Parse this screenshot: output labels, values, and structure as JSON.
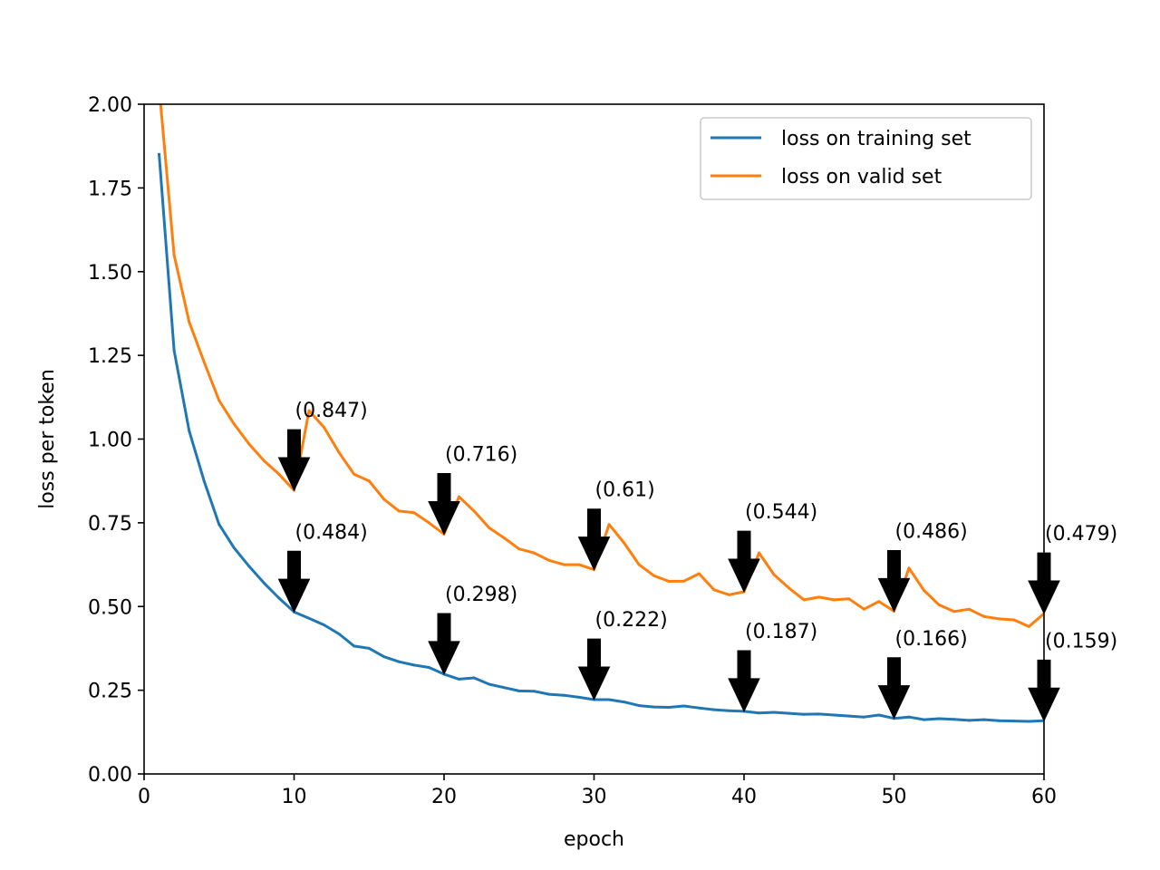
{
  "chart_data": {
    "type": "line",
    "title": "",
    "xlabel": "epoch",
    "ylabel": "loss per token",
    "xlim": [
      0,
      60
    ],
    "ylim": [
      0,
      2.0
    ],
    "xticks": [
      0,
      10,
      20,
      30,
      40,
      50,
      60
    ],
    "yticks": [
      0.0,
      0.25,
      0.5,
      0.75,
      1.0,
      1.25,
      1.5,
      1.75,
      2.0
    ],
    "xtick_labels": [
      "0",
      "10",
      "20",
      "30",
      "40",
      "50",
      "60"
    ],
    "ytick_labels": [
      "0.00",
      "0.25",
      "0.50",
      "0.75",
      "1.00",
      "1.25",
      "1.50",
      "1.75",
      "2.00"
    ],
    "grid": false,
    "legend_position": "top-right",
    "series": [
      {
        "name": "loss on training set",
        "color": "#1f77b4",
        "x": [
          1,
          2,
          3,
          4,
          5,
          6,
          7,
          8,
          9,
          10,
          11,
          12,
          13,
          14,
          15,
          16,
          17,
          18,
          19,
          20,
          21,
          22,
          23,
          24,
          25,
          26,
          27,
          28,
          29,
          30,
          31,
          32,
          33,
          34,
          35,
          36,
          37,
          38,
          39,
          40,
          41,
          42,
          43,
          44,
          45,
          46,
          47,
          48,
          49,
          50,
          51,
          52,
          53,
          54,
          55,
          56,
          57,
          58,
          59,
          60
        ],
        "values": [
          1.85,
          1.265,
          1.025,
          0.875,
          0.745,
          0.675,
          0.62,
          0.57,
          0.525,
          0.484,
          0.465,
          0.445,
          0.418,
          0.382,
          0.375,
          0.35,
          0.335,
          0.325,
          0.318,
          0.298,
          0.283,
          0.287,
          0.268,
          0.258,
          0.248,
          0.247,
          0.238,
          0.235,
          0.229,
          0.222,
          0.222,
          0.215,
          0.204,
          0.2,
          0.199,
          0.203,
          0.197,
          0.192,
          0.189,
          0.187,
          0.182,
          0.184,
          0.181,
          0.178,
          0.179,
          0.176,
          0.173,
          0.17,
          0.176,
          0.166,
          0.17,
          0.162,
          0.165,
          0.163,
          0.16,
          0.162,
          0.159,
          0.158,
          0.157,
          0.159
        ]
      },
      {
        "name": "loss on valid set",
        "color": "#ff7f0e",
        "x": [
          1,
          2,
          3,
          4,
          5,
          6,
          7,
          8,
          9,
          10,
          11,
          12,
          13,
          14,
          15,
          16,
          17,
          18,
          19,
          20,
          21,
          22,
          23,
          24,
          25,
          26,
          27,
          28,
          29,
          30,
          31,
          32,
          33,
          34,
          35,
          36,
          37,
          38,
          39,
          40,
          41,
          42,
          43,
          44,
          45,
          46,
          47,
          48,
          49,
          50,
          51,
          52,
          53,
          54,
          55,
          56,
          57,
          58,
          59,
          60
        ],
        "values": [
          2.05,
          1.55,
          1.35,
          1.23,
          1.115,
          1.045,
          0.985,
          0.935,
          0.895,
          0.847,
          1.085,
          1.035,
          0.96,
          0.895,
          0.875,
          0.82,
          0.785,
          0.78,
          0.75,
          0.716,
          0.828,
          0.785,
          0.735,
          0.705,
          0.672,
          0.66,
          0.638,
          0.625,
          0.625,
          0.61,
          0.745,
          0.69,
          0.625,
          0.592,
          0.575,
          0.576,
          0.598,
          0.55,
          0.535,
          0.544,
          0.66,
          0.595,
          0.555,
          0.52,
          0.528,
          0.52,
          0.523,
          0.492,
          0.515,
          0.486,
          0.615,
          0.548,
          0.505,
          0.485,
          0.492,
          0.47,
          0.463,
          0.46,
          0.44,
          0.479
        ]
      }
    ],
    "annotations": [
      {
        "series": 1,
        "x": 10,
        "y": 0.847,
        "label": "(0.847)"
      },
      {
        "series": 1,
        "x": 20,
        "y": 0.716,
        "label": "(0.716)"
      },
      {
        "series": 1,
        "x": 30,
        "y": 0.61,
        "label": "(0.61)"
      },
      {
        "series": 1,
        "x": 40,
        "y": 0.544,
        "label": "(0.544)"
      },
      {
        "series": 1,
        "x": 50,
        "y": 0.486,
        "label": "(0.486)"
      },
      {
        "series": 1,
        "x": 60,
        "y": 0.479,
        "label": "(0.479)"
      },
      {
        "series": 0,
        "x": 10,
        "y": 0.484,
        "label": "(0.484)"
      },
      {
        "series": 0,
        "x": 20,
        "y": 0.298,
        "label": "(0.298)"
      },
      {
        "series": 0,
        "x": 30,
        "y": 0.222,
        "label": "(0.222)"
      },
      {
        "series": 0,
        "x": 40,
        "y": 0.187,
        "label": "(0.187)"
      },
      {
        "series": 0,
        "x": 50,
        "y": 0.166,
        "label": "(0.166)"
      },
      {
        "series": 0,
        "x": 60,
        "y": 0.159,
        "label": "(0.159)"
      }
    ]
  }
}
